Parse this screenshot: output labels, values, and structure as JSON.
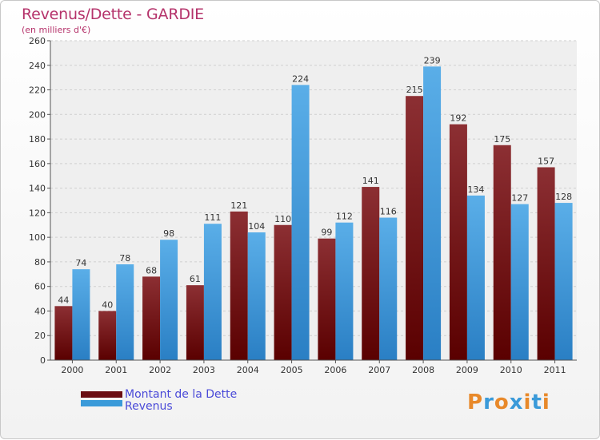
{
  "header": {
    "title": "Revenus/Dette - GARDIE",
    "subtitle": "(en milliers d'€)"
  },
  "logo": {
    "letters": [
      "P",
      "r",
      "o",
      "x",
      "i",
      "t",
      "i"
    ],
    "colors": [
      "#e8892a",
      "#3a9ad9",
      "#e8892a",
      "#3a9ad9",
      "#e8892a",
      "#3a9ad9",
      "#e8892a"
    ]
  },
  "legend": {
    "position": "bottom-left",
    "items": [
      {
        "label": "Montant de la Dette",
        "color": "#6b0d12"
      },
      {
        "label": "Revenus",
        "color": "#3a9ad9"
      }
    ]
  },
  "chart_data": {
    "type": "bar",
    "categories": [
      "2000",
      "2001",
      "2002",
      "2003",
      "2004",
      "2005",
      "2006",
      "2007",
      "2008",
      "2009",
      "2010",
      "2011"
    ],
    "series": [
      {
        "name": "Montant de la Dette",
        "values": [
          44,
          40,
          68,
          61,
          121,
          110,
          99,
          141,
          215,
          192,
          175,
          157
        ],
        "color_top": "#8c2f33",
        "color_bottom": "#5a0000"
      },
      {
        "name": "Revenus",
        "values": [
          74,
          78,
          98,
          111,
          104,
          224,
          112,
          116,
          239,
          134,
          127,
          128
        ],
        "color_top": "#5aaee8",
        "color_bottom": "#2a7fc4"
      }
    ],
    "yticks": [
      0,
      20,
      40,
      60,
      80,
      100,
      120,
      140,
      160,
      180,
      200,
      220,
      240,
      260
    ],
    "ylim": [
      0,
      260
    ],
    "grid": true,
    "title": "Revenus/Dette - GARDIE",
    "xlabel": "",
    "ylabel": "(en milliers d'€)"
  }
}
